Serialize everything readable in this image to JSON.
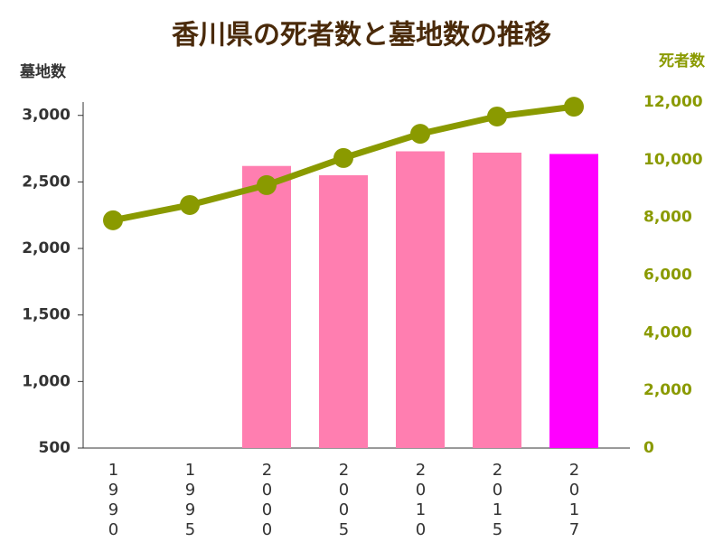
{
  "chart_data": {
    "type": "bar-line",
    "title": "香川県の死者数と墓地数の推移",
    "y_label": "墓地数",
    "y2_label": "死者数",
    "categories": [
      "1990",
      "1995",
      "2000",
      "2005",
      "2010",
      "2015",
      "2017"
    ],
    "series": [
      {
        "name": "墓地数",
        "type": "bar",
        "colors": [
          "#ff7eb0",
          "#ff7eb0",
          "#ff7eb0",
          "#ff7eb0",
          "#ff7eb0",
          "#ff7eb0",
          "#ff00ff"
        ],
        "values": [
          null,
          null,
          2620,
          2550,
          2730,
          2720,
          2710
        ]
      },
      {
        "name": "死者数",
        "type": "line",
        "axis": "y2",
        "color": "#8a9a00",
        "values": [
          7900,
          8430,
          9120,
          10060,
          10900,
          11500,
          11840
        ]
      }
    ],
    "ylim": [
      500,
      3100
    ],
    "yticks": [
      500,
      {
        "value": 1000,
        "label": "1,000"
      },
      {
        "value": 1500,
        "label": "1,500"
      },
      {
        "value": 2000,
        "label": "2,000"
      },
      {
        "value": 2500,
        "label": "2,500"
      },
      {
        "value": 3000,
        "label": "3,000"
      }
    ],
    "y2lim": [
      0,
      12000
    ],
    "y2ticks": [
      0,
      {
        "value": 2000,
        "label": "2,000"
      },
      {
        "value": 4000,
        "label": "4,000"
      },
      {
        "value": 6000,
        "label": "6,000"
      },
      {
        "value": 8000,
        "label": "8,000"
      },
      {
        "value": 10000,
        "label": "10,000"
      },
      {
        "value": 12000,
        "label": "12,000"
      }
    ]
  }
}
